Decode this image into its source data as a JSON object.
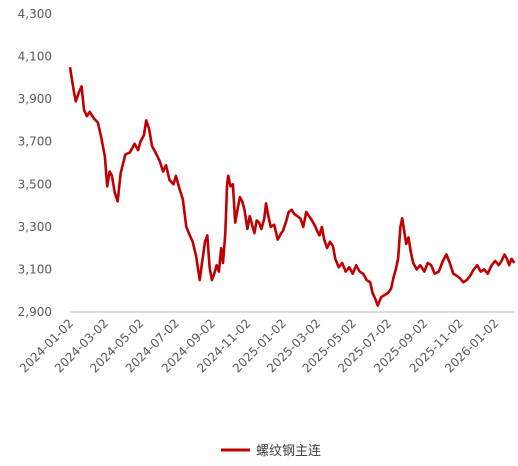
{
  "chart_data": {
    "type": "line",
    "title": "",
    "xlabel": "",
    "ylabel": "",
    "ylim": [
      2900,
      4300
    ],
    "y_ticks": [
      2900,
      3100,
      3300,
      3500,
      3700,
      3900,
      4100,
      4300
    ],
    "y_tick_labels": [
      "2,900",
      "3,100",
      "3,300",
      "3,500",
      "3,700",
      "3,900",
      "4,100",
      "4,300"
    ],
    "x_tick_labels": [
      "2024-01-02",
      "2024-03-02",
      "2024-05-02",
      "2024-07-02",
      "2024-09-02",
      "2024-11-02",
      "2025-01-02",
      "2025-03-02",
      "2025-05-02",
      "2025-07-02",
      "2025-09-02",
      "2025-11-02",
      "2026-01-02"
    ],
    "xlim": [
      "2024-01-02",
      "2026-02-05"
    ],
    "grid": false,
    "legend_position": "bottom",
    "series": [
      {
        "name": "螺纹钢主连",
        "color": "#C00000",
        "points": [
          [
            "2024-01-02",
            4050
          ],
          [
            "2024-01-05",
            4000
          ],
          [
            "2024-01-09",
            3930
          ],
          [
            "2024-01-12",
            3890
          ],
          [
            "2024-01-17",
            3930
          ],
          [
            "2024-01-22",
            3960
          ],
          [
            "2024-01-26",
            3850
          ],
          [
            "2024-01-31",
            3820
          ],
          [
            "2024-02-05",
            3840
          ],
          [
            "2024-02-12",
            3810
          ],
          [
            "2024-02-19",
            3790
          ],
          [
            "2024-02-24",
            3730
          ],
          [
            "2024-03-02",
            3630
          ],
          [
            "2024-03-06",
            3490
          ],
          [
            "2024-03-10",
            3560
          ],
          [
            "2024-03-14",
            3540
          ],
          [
            "2024-03-19",
            3460
          ],
          [
            "2024-03-24",
            3420
          ],
          [
            "2024-03-29",
            3550
          ],
          [
            "2024-04-06",
            3640
          ],
          [
            "2024-04-14",
            3650
          ],
          [
            "2024-04-22",
            3690
          ],
          [
            "2024-04-28",
            3660
          ],
          [
            "2024-05-02",
            3700
          ],
          [
            "2024-05-08",
            3730
          ],
          [
            "2024-05-12",
            3800
          ],
          [
            "2024-05-17",
            3760
          ],
          [
            "2024-05-22",
            3680
          ],
          [
            "2024-05-28",
            3650
          ],
          [
            "2024-06-04",
            3610
          ],
          [
            "2024-06-10",
            3560
          ],
          [
            "2024-06-15",
            3590
          ],
          [
            "2024-06-21",
            3520
          ],
          [
            "2024-06-28",
            3500
          ],
          [
            "2024-07-02",
            3540
          ],
          [
            "2024-07-08",
            3480
          ],
          [
            "2024-07-14",
            3430
          ],
          [
            "2024-07-20",
            3300
          ],
          [
            "2024-07-26",
            3260
          ],
          [
            "2024-07-31",
            3230
          ],
          [
            "2024-08-06",
            3160
          ],
          [
            "2024-08-12",
            3050
          ],
          [
            "2024-08-16",
            3130
          ],
          [
            "2024-08-21",
            3230
          ],
          [
            "2024-08-25",
            3260
          ],
          [
            "2024-08-29",
            3110
          ],
          [
            "2024-09-02",
            3050
          ],
          [
            "2024-09-06",
            3080
          ],
          [
            "2024-09-10",
            3120
          ],
          [
            "2024-09-14",
            3090
          ],
          [
            "2024-09-18",
            3200
          ],
          [
            "2024-09-21",
            3130
          ],
          [
            "2024-09-25",
            3270
          ],
          [
            "2024-09-28",
            3500
          ],
          [
            "2024-09-30",
            3540
          ],
          [
            "2024-10-04",
            3490
          ],
          [
            "2024-10-08",
            3500
          ],
          [
            "2024-10-12",
            3320
          ],
          [
            "2024-10-16",
            3380
          ],
          [
            "2024-10-20",
            3440
          ],
          [
            "2024-10-24",
            3420
          ],
          [
            "2024-10-28",
            3380
          ],
          [
            "2024-11-02",
            3290
          ],
          [
            "2024-11-06",
            3350
          ],
          [
            "2024-11-10",
            3310
          ],
          [
            "2024-11-14",
            3270
          ],
          [
            "2024-11-18",
            3330
          ],
          [
            "2024-11-22",
            3320
          ],
          [
            "2024-11-26",
            3290
          ],
          [
            "2024-12-01",
            3340
          ],
          [
            "2024-12-04",
            3410
          ],
          [
            "2024-12-08",
            3350
          ],
          [
            "2024-12-12",
            3300
          ],
          [
            "2024-12-18",
            3310
          ],
          [
            "2024-12-24",
            3240
          ],
          [
            "2024-12-30",
            3270
          ],
          [
            "2025-01-02",
            3280
          ],
          [
            "2025-01-07",
            3320
          ],
          [
            "2025-01-12",
            3370
          ],
          [
            "2025-01-17",
            3380
          ],
          [
            "2025-01-22",
            3360
          ],
          [
            "2025-01-27",
            3350
          ],
          [
            "2025-02-01",
            3340
          ],
          [
            "2025-02-06",
            3300
          ],
          [
            "2025-02-11",
            3370
          ],
          [
            "2025-02-16",
            3350
          ],
          [
            "2025-02-21",
            3330
          ],
          [
            "2025-02-27",
            3300
          ],
          [
            "2025-03-02",
            3280
          ],
          [
            "2025-03-06",
            3260
          ],
          [
            "2025-03-10",
            3300
          ],
          [
            "2025-03-14",
            3240
          ],
          [
            "2025-03-19",
            3200
          ],
          [
            "2025-03-24",
            3230
          ],
          [
            "2025-03-29",
            3210
          ],
          [
            "2025-04-02",
            3150
          ],
          [
            "2025-04-08",
            3110
          ],
          [
            "2025-04-14",
            3130
          ],
          [
            "2025-04-20",
            3090
          ],
          [
            "2025-04-26",
            3110
          ],
          [
            "2025-05-02",
            3080
          ],
          [
            "2025-05-08",
            3120
          ],
          [
            "2025-05-14",
            3090
          ],
          [
            "2025-05-20",
            3080
          ],
          [
            "2025-05-26",
            3050
          ],
          [
            "2025-06-01",
            3040
          ],
          [
            "2025-06-05",
            2990
          ],
          [
            "2025-06-10",
            2960
          ],
          [
            "2025-06-14",
            2930
          ],
          [
            "2025-06-20",
            2970
          ],
          [
            "2025-06-26",
            2980
          ],
          [
            "2025-07-02",
            2990
          ],
          [
            "2025-07-07",
            3010
          ],
          [
            "2025-07-11",
            3060
          ],
          [
            "2025-07-15",
            3100
          ],
          [
            "2025-07-19",
            3150
          ],
          [
            "2025-07-23",
            3300
          ],
          [
            "2025-07-26",
            3340
          ],
          [
            "2025-07-29",
            3290
          ],
          [
            "2025-08-02",
            3220
          ],
          [
            "2025-08-06",
            3250
          ],
          [
            "2025-08-10",
            3180
          ],
          [
            "2025-08-14",
            3130
          ],
          [
            "2025-08-20",
            3100
          ],
          [
            "2025-08-26",
            3120
          ],
          [
            "2025-09-02",
            3090
          ],
          [
            "2025-09-08",
            3130
          ],
          [
            "2025-09-14",
            3120
          ],
          [
            "2025-09-20",
            3080
          ],
          [
            "2025-09-27",
            3090
          ],
          [
            "2025-10-04",
            3140
          ],
          [
            "2025-10-10",
            3170
          ],
          [
            "2025-10-16",
            3130
          ],
          [
            "2025-10-22",
            3080
          ],
          [
            "2025-10-28",
            3070
          ],
          [
            "2025-11-02",
            3060
          ],
          [
            "2025-11-08",
            3040
          ],
          [
            "2025-11-14",
            3050
          ],
          [
            "2025-11-20",
            3070
          ],
          [
            "2025-11-26",
            3100
          ],
          [
            "2025-12-02",
            3120
          ],
          [
            "2025-12-08",
            3090
          ],
          [
            "2025-12-14",
            3100
          ],
          [
            "2025-12-20",
            3080
          ],
          [
            "2025-12-27",
            3120
          ],
          [
            "2026-01-02",
            3140
          ],
          [
            "2026-01-08",
            3120
          ],
          [
            "2026-01-13",
            3140
          ],
          [
            "2026-01-18",
            3170
          ],
          [
            "2026-01-22",
            3150
          ],
          [
            "2026-01-26",
            3120
          ],
          [
            "2026-01-30",
            3150
          ],
          [
            "2026-02-04",
            3130
          ]
        ]
      }
    ]
  }
}
